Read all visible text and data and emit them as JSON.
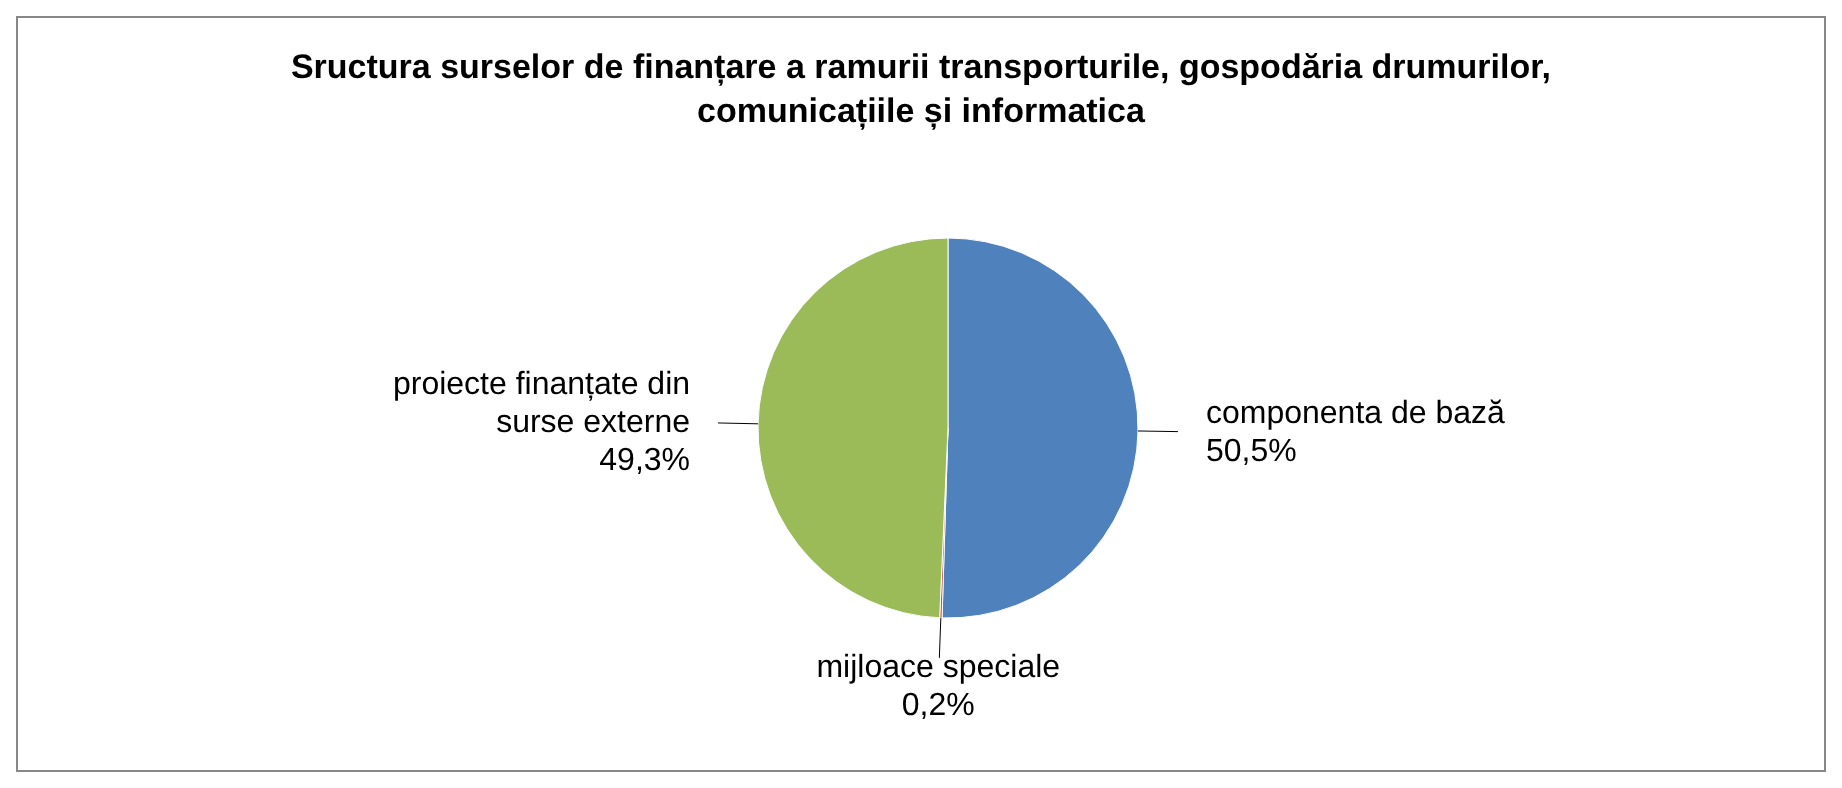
{
  "chart_data": {
    "type": "pie",
    "title": "Sructura surselor de finanțare a ramurii transporturile, gospodăria drumurilor, comunicațiile și informatica",
    "categories": [
      "componenta de bază",
      "mijloace speciale",
      "proiecte finanțate din surse externe"
    ],
    "values": [
      50.5,
      0.2,
      49.3
    ],
    "value_labels": [
      "50,5%",
      "0,2%",
      "49,3%"
    ],
    "colors": [
      "#4f81bd",
      "#c0504d",
      "#9bbb59"
    ]
  }
}
